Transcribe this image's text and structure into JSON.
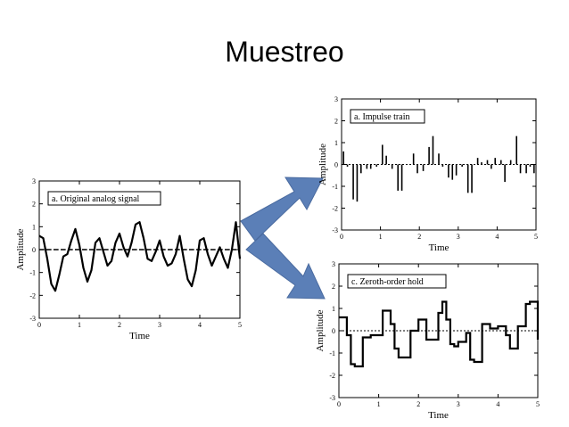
{
  "slide": {
    "title": "Muestreo"
  },
  "arrow_color": "#5b7fb7",
  "chart_data": [
    {
      "type": "line",
      "legend": "a.  Original analog signal",
      "xlabel": "Time",
      "ylabel": "Amplitude",
      "xlim": [
        0,
        5
      ],
      "ylim": [
        -3,
        3
      ],
      "xticks": [
        "0",
        "1",
        "2",
        "3",
        "4",
        "5"
      ],
      "yticks": [
        "-3",
        "-2",
        "-1",
        "0",
        "1",
        "2",
        "3"
      ],
      "x": [
        0.0,
        0.1,
        0.2,
        0.3,
        0.4,
        0.5,
        0.6,
        0.7,
        0.8,
        0.9,
        1.0,
        1.1,
        1.2,
        1.3,
        1.4,
        1.5,
        1.6,
        1.7,
        1.8,
        1.9,
        2.0,
        2.1,
        2.2,
        2.3,
        2.4,
        2.5,
        2.6,
        2.7,
        2.8,
        2.9,
        3.0,
        3.1,
        3.2,
        3.3,
        3.4,
        3.5,
        3.6,
        3.7,
        3.8,
        3.9,
        4.0,
        4.1,
        4.2,
        4.3,
        4.4,
        4.5,
        4.6,
        4.7,
        4.8,
        4.9,
        5.0
      ],
      "y": [
        0.6,
        0.5,
        -0.4,
        -1.5,
        -1.8,
        -1.1,
        -0.3,
        -0.2,
        0.4,
        0.9,
        0.2,
        -0.8,
        -1.4,
        -0.9,
        0.3,
        0.5,
        -0.1,
        -0.7,
        -0.5,
        0.3,
        0.7,
        0.1,
        -0.3,
        0.3,
        1.1,
        1.2,
        0.5,
        -0.4,
        -0.5,
        -0.1,
        0.4,
        -0.3,
        -0.7,
        -0.6,
        -0.2,
        0.6,
        -0.4,
        -1.3,
        -1.6,
        -0.9,
        0.4,
        0.5,
        -0.2,
        -0.7,
        -0.3,
        0.1,
        -0.4,
        -0.8,
        0.0,
        1.2,
        -0.4
      ],
      "zero_line": true
    },
    {
      "type": "bar",
      "legend": "a.  Impulse train",
      "xlabel": "Time",
      "ylabel": "Amplitude",
      "xlim": [
        0,
        5
      ],
      "ylim": [
        -3,
        3
      ],
      "xticks": [
        "0",
        "1",
        "2",
        "3",
        "4",
        "5"
      ],
      "yticks": [
        "-3",
        "-2",
        "-1",
        "0",
        "1",
        "2",
        "3"
      ],
      "x": [
        0.05,
        0.15,
        0.3,
        0.4,
        0.5,
        0.65,
        0.75,
        0.9,
        1.05,
        1.15,
        1.3,
        1.45,
        1.55,
        1.75,
        1.85,
        1.95,
        2.1,
        2.25,
        2.35,
        2.5,
        2.6,
        2.75,
        2.85,
        2.95,
        3.1,
        3.25,
        3.35,
        3.5,
        3.6,
        3.75,
        3.85,
        3.95,
        4.1,
        4.2,
        4.35,
        4.5,
        4.6,
        4.75,
        4.85,
        4.95
      ],
      "values": [
        0.6,
        -0.1,
        -1.6,
        -1.7,
        -0.4,
        -0.2,
        -0.2,
        -0.1,
        0.9,
        0.4,
        -0.2,
        -1.2,
        -1.2,
        0.0,
        0.5,
        -0.4,
        -0.3,
        0.8,
        1.3,
        0.5,
        -0.1,
        -0.6,
        -0.7,
        -0.5,
        -0.1,
        -1.3,
        -1.3,
        0.3,
        0.1,
        0.2,
        -0.2,
        0.3,
        0.2,
        -0.8,
        0.2,
        1.3,
        -0.4,
        -0.4,
        -0.1,
        -0.4
      ]
    },
    {
      "type": "step",
      "legend": "c.  Zeroth-order hold",
      "xlabel": "Time",
      "ylabel": "Amplitude",
      "xlim": [
        0,
        5
      ],
      "ylim": [
        -3,
        3
      ],
      "xticks": [
        "0",
        "1",
        "2",
        "3",
        "4",
        "5"
      ],
      "yticks": [
        "-3",
        "-2",
        "-1",
        "0",
        "1",
        "2",
        "3"
      ],
      "x": [
        0.0,
        0.1,
        0.2,
        0.3,
        0.4,
        0.5,
        0.6,
        0.7,
        0.8,
        0.9,
        1.0,
        1.1,
        1.2,
        1.3,
        1.4,
        1.5,
        1.6,
        1.7,
        1.8,
        1.9,
        2.0,
        2.1,
        2.2,
        2.3,
        2.4,
        2.5,
        2.6,
        2.7,
        2.8,
        2.9,
        3.0,
        3.1,
        3.2,
        3.3,
        3.4,
        3.5,
        3.6,
        3.7,
        3.8,
        3.9,
        4.0,
        4.1,
        4.2,
        4.3,
        4.4,
        4.5,
        4.6,
        4.7,
        4.8,
        4.9,
        5.0
      ],
      "values": [
        0.6,
        0.6,
        -0.2,
        -1.5,
        -1.6,
        -1.6,
        -0.3,
        -0.3,
        -0.2,
        -0.2,
        -0.2,
        0.9,
        0.9,
        0.3,
        -0.8,
        -1.2,
        -1.2,
        -1.2,
        0.0,
        0.0,
        0.5,
        0.5,
        -0.4,
        -0.4,
        -0.4,
        0.8,
        1.3,
        0.5,
        -0.6,
        -0.7,
        -0.5,
        -0.5,
        -0.1,
        -1.3,
        -1.4,
        -1.4,
        0.3,
        0.3,
        0.1,
        0.1,
        0.2,
        0.2,
        -0.2,
        -0.8,
        -0.8,
        0.2,
        0.2,
        1.2,
        1.3,
        1.3,
        -0.4
      ],
      "zero_line": true
    }
  ]
}
